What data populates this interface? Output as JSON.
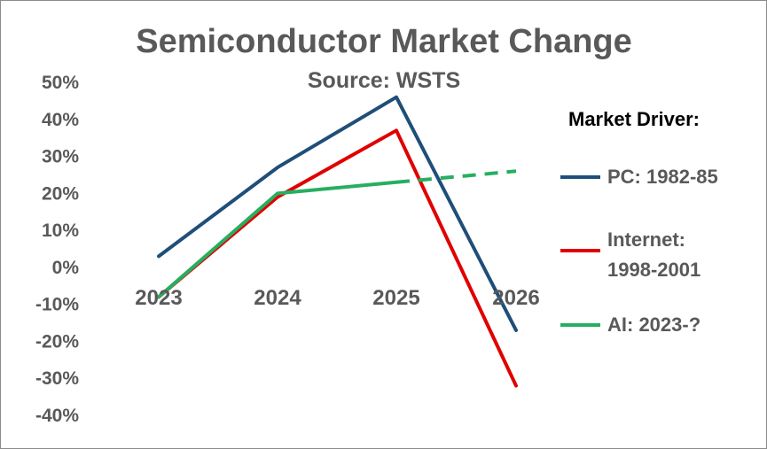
{
  "chart_data": {
    "type": "line",
    "title": "Semiconductor Market Change",
    "subtitle": "Source: WSTS",
    "categories": [
      "2023",
      "2024",
      "2025",
      "2026"
    ],
    "y_ticks": [
      "50%",
      "40%",
      "30%",
      "20%",
      "10%",
      "0%",
      "-10%",
      "-20%",
      "-30%",
      "-40%"
    ],
    "ylim": [
      -40,
      50
    ],
    "grid": false,
    "legend_title": "Market Driver:",
    "legend_position": "right",
    "series": [
      {
        "name": "PC: 1982-85",
        "color": "#1f4e79",
        "values": [
          3,
          27,
          46,
          -17
        ],
        "dashed_from_index": null
      },
      {
        "name": "Internet: 1998-2001",
        "name_lines": [
          "Internet:",
          "1998-2001"
        ],
        "color": "#e00000",
        "values": [
          -8,
          19,
          37,
          -32
        ],
        "dashed_from_index": null
      },
      {
        "name": "AI: 2023-?",
        "color": "#27ae60",
        "values": [
          -8,
          20,
          23,
          26
        ],
        "dashed_from_index": 2
      }
    ]
  }
}
